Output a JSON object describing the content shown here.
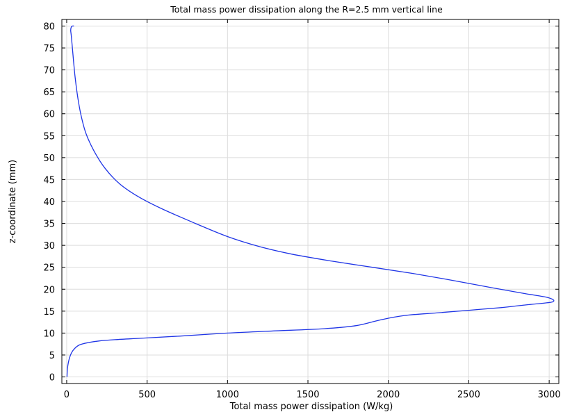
{
  "chart_data": {
    "type": "line",
    "title": "Total mass power dissipation along the R=2.5 mm vertical line",
    "xlabel": "Total mass power dissipation (W/kg)",
    "ylabel": "z-coordinate (mm)",
    "xlim": [
      -30,
      3060
    ],
    "ylim": [
      -1.5,
      81.5
    ],
    "xticks": [
      0,
      500,
      1000,
      1500,
      2000,
      2500,
      3000
    ],
    "yticks": [
      0,
      5,
      10,
      15,
      20,
      25,
      30,
      35,
      40,
      45,
      50,
      55,
      60,
      65,
      70,
      75,
      80
    ],
    "grid": true,
    "series": [
      {
        "color": "#1f35e6",
        "x": [
          2,
          5,
          15,
          30,
          50,
          80,
          130,
          200,
          300,
          450,
          700,
          1000,
          1300,
          1600,
          1800,
          1950,
          2100,
          2300,
          2500,
          2700,
          2850,
          2960,
          3020,
          3025,
          2980,
          2850,
          2650,
          2400,
          2150,
          1900,
          1650,
          1400,
          1200,
          1000,
          800,
          600,
          450,
          330,
          240,
          170,
          120,
          90,
          70,
          55,
          45,
          38,
          32,
          28,
          25,
          28,
          35,
          45
        ],
        "y": [
          0,
          2,
          4,
          5.5,
          6.5,
          7.3,
          7.8,
          8.2,
          8.5,
          8.8,
          9.3,
          10,
          10.5,
          11,
          11.7,
          13,
          14,
          14.6,
          15.2,
          15.8,
          16.4,
          16.8,
          17.1,
          17.6,
          18.2,
          19,
          20.3,
          22,
          23.6,
          25,
          26.4,
          28,
          29.7,
          32,
          35,
          38.2,
          41,
          44,
          47.5,
          51.5,
          55.5,
          59.5,
          63.5,
          67.5,
          71,
          74,
          76.5,
          78,
          79,
          79.7,
          80,
          80
        ]
      }
    ]
  }
}
